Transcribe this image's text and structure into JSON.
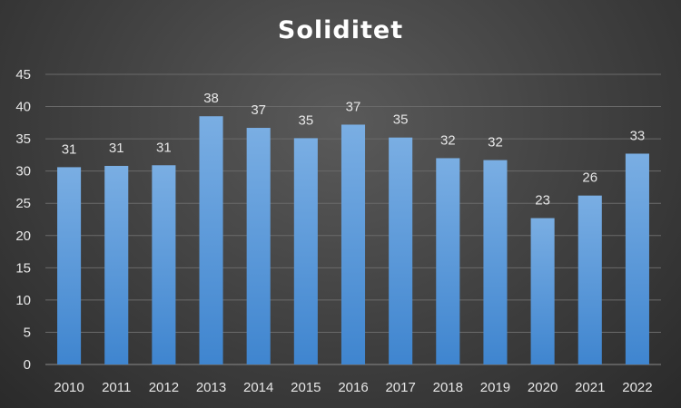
{
  "chart_data": {
    "type": "bar",
    "title": "Soliditet",
    "xlabel": "",
    "ylabel": "",
    "categories": [
      "2010",
      "2011",
      "2012",
      "2013",
      "2014",
      "2015",
      "2016",
      "2017",
      "2018",
      "2019",
      "2020",
      "2021",
      "2022"
    ],
    "values": [
      30.6,
      30.8,
      30.9,
      38.5,
      36.7,
      35.1,
      37.2,
      35.2,
      32.0,
      31.7,
      22.7,
      26.2,
      32.7
    ],
    "data_labels": [
      "31",
      "31",
      "31",
      "38",
      "37",
      "35",
      "37",
      "35",
      "32",
      "32",
      "23",
      "26",
      "33"
    ],
    "ylim": [
      0,
      45
    ],
    "yticks": [
      "0",
      "5",
      "10",
      "15",
      "20",
      "25",
      "30",
      "35",
      "40",
      "45"
    ],
    "grid": true,
    "legend": "none",
    "colors": {
      "bar_top": "#7aaee3",
      "bar_bottom": "#3f85cf",
      "grid": "#6a6a6a",
      "text": "#e6e6e6"
    }
  }
}
